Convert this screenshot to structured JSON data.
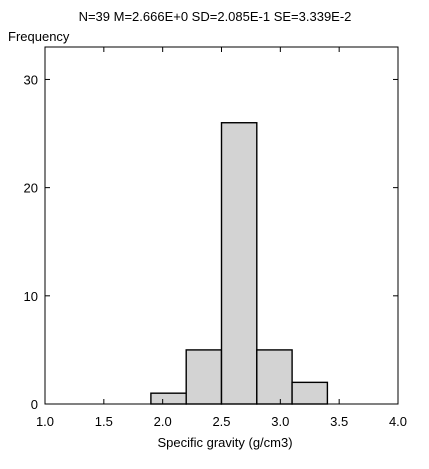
{
  "chart_data": {
    "type": "bar",
    "title": "N=39 M=2.666E+0 SD=2.085E-1 SE=3.339E-2",
    "ylabel": "Frequency",
    "xlabel": "Specific gravity (g/cm3)",
    "xlim": [
      1.0,
      4.0
    ],
    "ylim": [
      0,
      33
    ],
    "xticks": [
      "1.0",
      "1.5",
      "2.0",
      "2.5",
      "3.0",
      "3.5",
      "4.0"
    ],
    "yticks": [
      "0",
      "10",
      "20",
      "30"
    ],
    "bins": [
      {
        "start": 1.9,
        "end": 2.2,
        "value": 1
      },
      {
        "start": 2.2,
        "end": 2.5,
        "value": 5
      },
      {
        "start": 2.5,
        "end": 2.8,
        "value": 26
      },
      {
        "start": 2.8,
        "end": 3.1,
        "value": 5
      },
      {
        "start": 3.1,
        "end": 3.4,
        "value": 2
      }
    ],
    "bar_color": "#d3d3d3",
    "edge_color": "#000000",
    "grid": false
  }
}
